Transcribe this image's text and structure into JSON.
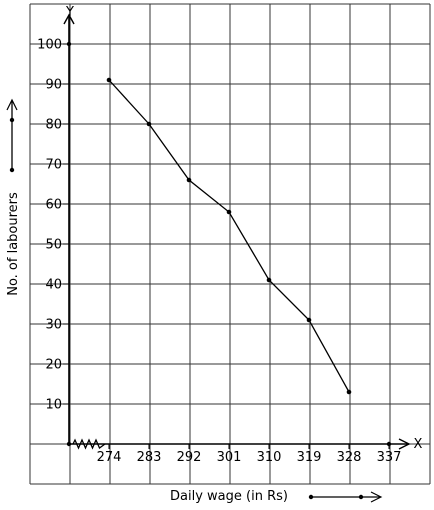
{
  "chart_data": {
    "type": "line",
    "xlabel": "Daily wage (in Rs)",
    "ylabel": "No. of labourers",
    "x_axis_letter": "X",
    "y_axis_letter": "Y",
    "x_ticks": [
      "274",
      "283",
      "292",
      "301",
      "310",
      "319",
      "328",
      "337"
    ],
    "y_ticks": [
      "10",
      "20",
      "30",
      "40",
      "50",
      "60",
      "70",
      "80",
      "90",
      "100"
    ],
    "x": [
      274,
      283,
      292,
      301,
      310,
      319,
      328
    ],
    "y": [
      91,
      80,
      66,
      58,
      41,
      31,
      13
    ],
    "xlim": [
      265,
      341
    ],
    "ylim": [
      0,
      108
    ],
    "grid": true,
    "axis_break": "zigzag near origin on x-axis"
  }
}
